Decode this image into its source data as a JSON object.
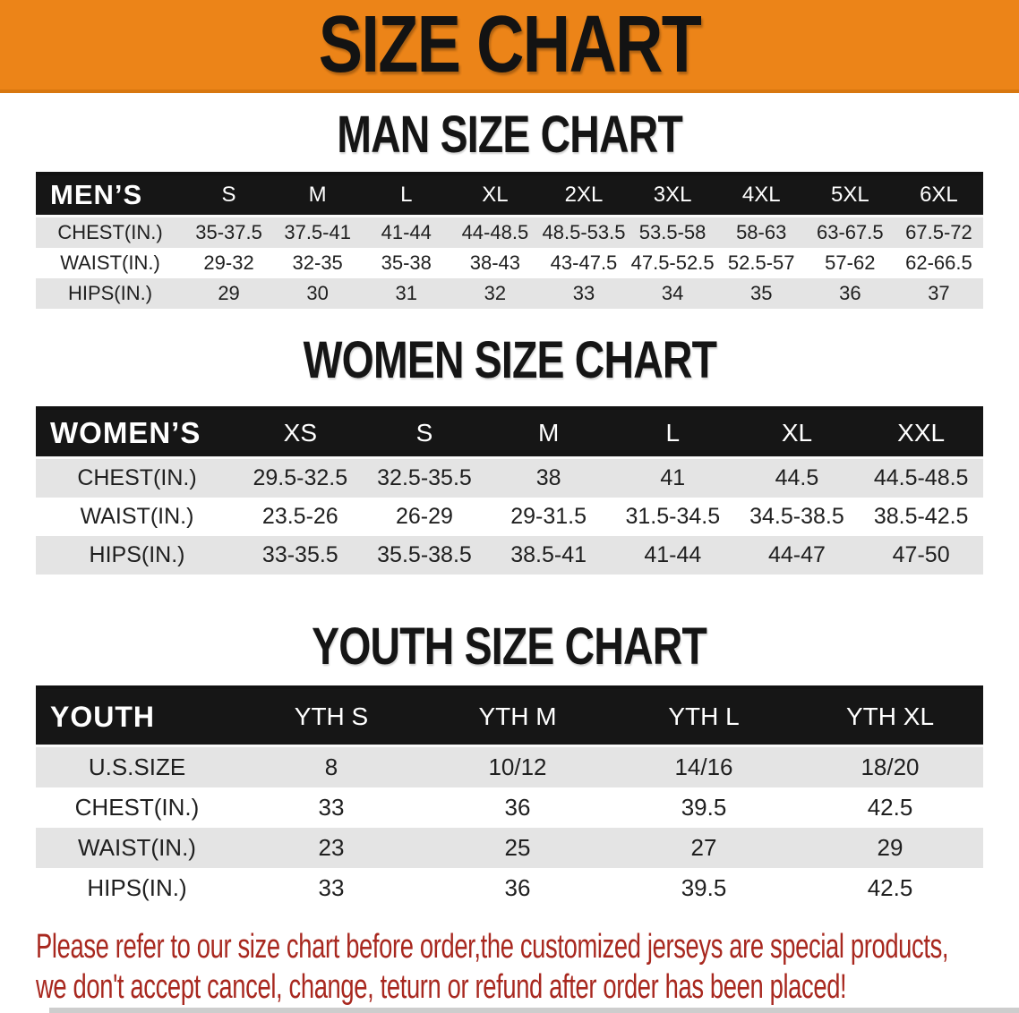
{
  "banner": {
    "title": "SIZE CHART"
  },
  "colors": {
    "banner_orange": "#ec8418",
    "header_black": "#161616",
    "row_gray": "#e4e4e4",
    "disclaimer_red": "#a8281f"
  },
  "men_section": {
    "heading": "MAN SIZE CHART",
    "table": {
      "header": [
        "MEN’S",
        "S",
        "M",
        "L",
        "XL",
        "2XL",
        "3XL",
        "4XL",
        "5XL",
        "6XL"
      ],
      "rows": [
        {
          "label": "CHEST(IN.)",
          "values": [
            "35-37.5",
            "37.5-41",
            "41-44",
            "44-48.5",
            "48.5-53.5",
            "53.5-58",
            "58-63",
            "63-67.5",
            "67.5-72"
          ]
        },
        {
          "label": "WAIST(IN.)",
          "values": [
            "29-32",
            "32-35",
            "35-38",
            "38-43",
            "43-47.5",
            "47.5-52.5",
            "52.5-57",
            "57-62",
            "62-66.5"
          ]
        },
        {
          "label": "HIPS(IN.)",
          "values": [
            "29",
            "30",
            "31",
            "32",
            "33",
            "34",
            "35",
            "36",
            "37"
          ]
        }
      ]
    }
  },
  "women_section": {
    "heading": "WOMEN SIZE CHART",
    "table": {
      "header": [
        "WOMEN’S",
        "XS",
        "S",
        "M",
        "L",
        "XL",
        "XXL"
      ],
      "rows": [
        {
          "label": "CHEST(IN.)",
          "values": [
            "29.5-32.5",
            "32.5-35.5",
            "38",
            "41",
            "44.5",
            "44.5-48.5"
          ]
        },
        {
          "label": "WAIST(IN.)",
          "values": [
            "23.5-26",
            "26-29",
            "29-31.5",
            "31.5-34.5",
            "34.5-38.5",
            "38.5-42.5"
          ]
        },
        {
          "label": "HIPS(IN.)",
          "values": [
            "33-35.5",
            "35.5-38.5",
            "38.5-41",
            "41-44",
            "44-47",
            "47-50"
          ]
        }
      ]
    }
  },
  "youth_section": {
    "heading": "YOUTH SIZE CHART",
    "table": {
      "header": [
        "YOUTH",
        "YTH S",
        "YTH M",
        "YTH L",
        "YTH XL"
      ],
      "rows": [
        {
          "label": "U.S.SIZE",
          "values": [
            "8",
            "10/12",
            "14/16",
            "18/20"
          ]
        },
        {
          "label": "CHEST(IN.)",
          "values": [
            "33",
            "36",
            "39.5",
            "42.5"
          ]
        },
        {
          "label": "WAIST(IN.)",
          "values": [
            "23",
            "25",
            "27",
            "29"
          ]
        },
        {
          "label": "HIPS(IN.)",
          "values": [
            "33",
            "36",
            "39.5",
            "42.5"
          ]
        }
      ]
    }
  },
  "disclaimer": {
    "line1": "Please refer to our size chart before order,the customized jerseys are special products,",
    "line2": "we don't accept cancel, change, teturn or refund after order has been placed!"
  }
}
